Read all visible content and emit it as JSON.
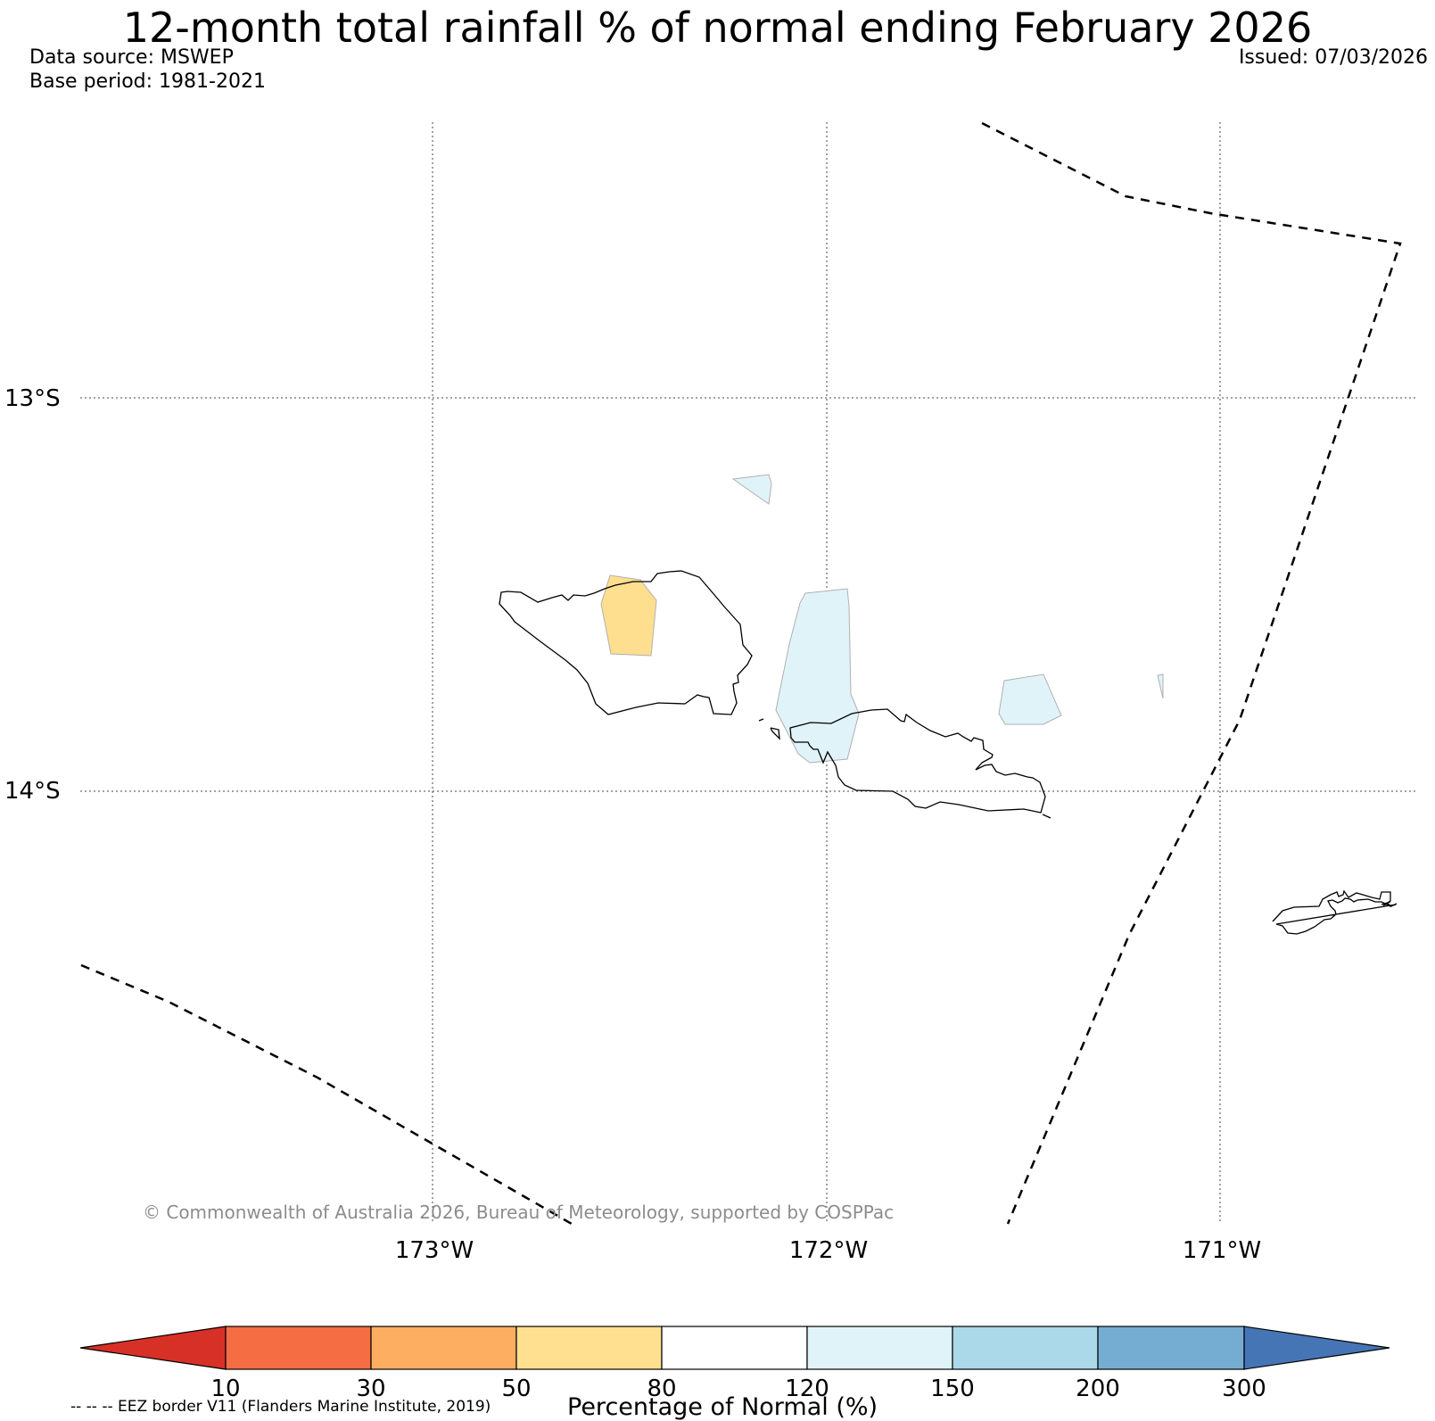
{
  "title": "12-month total rainfall % of normal ending February 2026",
  "data_source": "Data source: MSWEP",
  "base_period": "Base period: 1981-2021",
  "issued": "Issued: 07/03/2026",
  "map": {
    "lat_labels": [
      "13°S",
      "14°S"
    ],
    "lon_labels": [
      "173°W",
      "172°W",
      "171°W"
    ],
    "copyright": "© Commonwealth of Australia 2026, Bureau of Meteorology, supported by COSPPac",
    "regions": [
      {
        "name": "savaii-north-anomaly",
        "category": "50-80",
        "color": "#fedf8f"
      },
      {
        "name": "upolu-west-anomaly",
        "category": "120-150",
        "color": "#e0f3f8"
      },
      {
        "name": "upolu-east-anomaly",
        "category": "120-150",
        "color": "#e0f3f8"
      },
      {
        "name": "north-islet-anomaly",
        "category": "120-150",
        "color": "#e0f3f8"
      },
      {
        "name": "east-sliver-anomaly",
        "category": "120-150",
        "color": "#e0f3f8"
      }
    ]
  },
  "colorbar": {
    "title": "Percentage of Normal (%)",
    "ticks": [
      "10",
      "30",
      "50",
      "80",
      "120",
      "150",
      "200",
      "300"
    ],
    "colors": [
      "#d73027",
      "#f46d43",
      "#fdae61",
      "#fee090",
      "#ffffff",
      "#e0f3f8",
      "#abd9e9",
      "#74add1",
      "#4575b4"
    ]
  },
  "eez_note": "-- -- -- EEZ border V11 (Flanders Marine Institute, 2019)"
}
